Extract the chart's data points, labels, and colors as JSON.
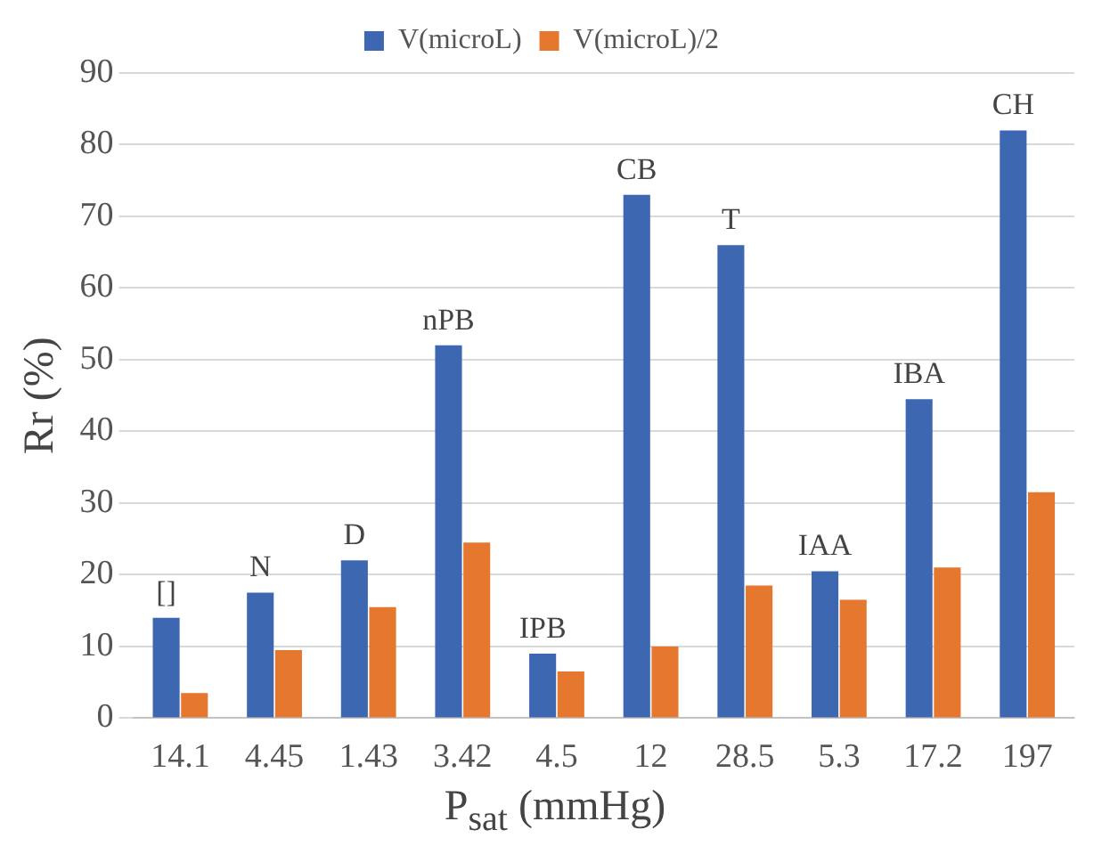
{
  "chart_data": {
    "type": "bar",
    "xlabel": "P$_{sat}$ (mmHg)",
    "ylabel": "Rr (%)",
    "categories": [
      "14.1",
      "4.45",
      "1.43",
      "3.42",
      "4.5",
      "12",
      "28.5",
      "5.3",
      "17.2",
      "197"
    ],
    "series": [
      {
        "name": "V(microL)",
        "color": "#3d67b1",
        "values": [
          14,
          17.5,
          22,
          52,
          9,
          73,
          66,
          20.5,
          44.5,
          82
        ]
      },
      {
        "name": "V(microL)/2",
        "color": "#e6772e",
        "values": [
          3.5,
          9.5,
          15.5,
          24.5,
          6.5,
          10,
          18.5,
          16.5,
          21,
          31.5
        ]
      }
    ],
    "ylim": [
      0,
      90
    ],
    "yticks": [
      0,
      10,
      20,
      30,
      40,
      50,
      60,
      70,
      80,
      90
    ],
    "grid": "y",
    "legend": "top",
    "annotations": [
      {
        "text": "[]",
        "x": "14.1",
        "y": 14
      },
      {
        "text": "N",
        "x": "4.45",
        "y": 17.5
      },
      {
        "text": "D",
        "x": "1.43",
        "y": 22
      },
      {
        "text": "nPB",
        "x": "3.42",
        "y": 52
      },
      {
        "text": "IPB",
        "x": "4.5",
        "y": 9
      },
      {
        "text": "CB",
        "x": "12",
        "y": 73
      },
      {
        "text": "T",
        "x": "28.5",
        "y": 66
      },
      {
        "text": "IAA",
        "x": "5.3",
        "y": 20.5
      },
      {
        "text": "IBA",
        "x": "17.2",
        "y": 44.5
      },
      {
        "text": "CH",
        "x": "197",
        "y": 82
      }
    ]
  }
}
